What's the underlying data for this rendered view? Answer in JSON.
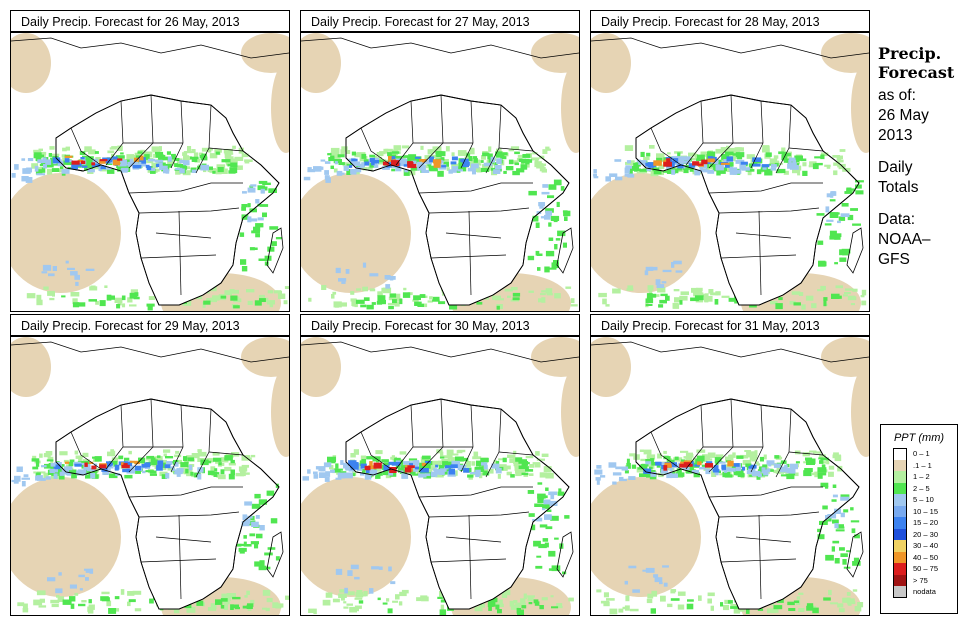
{
  "panels": [
    {
      "title": "Daily Precip. Forecast for  26 May, 2013"
    },
    {
      "title": "Daily Precip. Forecast for  27 May, 2013"
    },
    {
      "title": "Daily Precip. Forecast for  28 May, 2013"
    },
    {
      "title": "Daily Precip. Forecast for  29 May, 2013"
    },
    {
      "title": "Daily Precip. Forecast for  30 May, 2013"
    },
    {
      "title": "Daily Precip. Forecast for  31 May, 2013"
    }
  ],
  "side": {
    "heading_line1": "Precip.",
    "heading_line2": "Forecast",
    "asof_label": "as of:",
    "asof_date_line1": "26 May",
    "asof_date_line2": "2013",
    "totals_line1": "Daily",
    "totals_line2": "Totals",
    "data_line1": "Data:",
    "data_line2": "NOAA–",
    "data_line3": "GFS"
  },
  "legend": {
    "title": "PPT (mm)",
    "items": [
      {
        "label": "0 – 1",
        "color": "#ffffff"
      },
      {
        "label": ".1 – 1",
        "color": "#e6d4b4"
      },
      {
        "label": "1 – 2",
        "color": "#b4f0a0"
      },
      {
        "label": "2 – 5",
        "color": "#50e650"
      },
      {
        "label": "5 – 10",
        "color": "#a0c8f0"
      },
      {
        "label": "10 – 15",
        "color": "#78aaf0"
      },
      {
        "label": "15 – 20",
        "color": "#3c82f0"
      },
      {
        "label": "20 – 30",
        "color": "#1e50dc"
      },
      {
        "label": "30 – 40",
        "color": "#f0d264"
      },
      {
        "label": "40 – 50",
        "color": "#f09628"
      },
      {
        "label": "50 – 75",
        "color": "#dc1e1e"
      },
      {
        "label": "> 75",
        "color": "#a01414"
      },
      {
        "label": "nodata",
        "color": "#c8c8c8"
      }
    ]
  }
}
